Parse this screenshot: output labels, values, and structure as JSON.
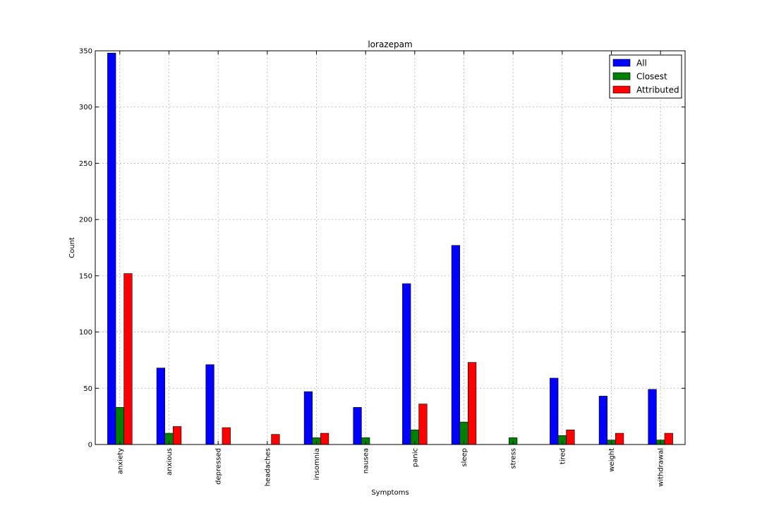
{
  "chart_data": {
    "type": "bar",
    "title": "lorazepam",
    "xlabel": "Symptoms",
    "ylabel": "Count",
    "ylim": [
      0,
      350
    ],
    "yticks": [
      0,
      50,
      100,
      150,
      200,
      250,
      300,
      350
    ],
    "grid": true,
    "legend_position": "top-right",
    "categories": [
      "anxiety",
      "anxious",
      "depressed",
      "headaches",
      "insomnia",
      "nausea",
      "panic",
      "sleep",
      "stress",
      "tired",
      "weight",
      "withdrawal"
    ],
    "series": [
      {
        "name": "All",
        "color": "#0000ff",
        "values": [
          348,
          68,
          71,
          0,
          47,
          33,
          143,
          177,
          0,
          59,
          43,
          49
        ]
      },
      {
        "name": "Closest",
        "color": "#008000",
        "values": [
          33,
          10,
          0,
          0,
          6,
          6,
          13,
          20,
          6,
          8,
          4,
          4
        ]
      },
      {
        "name": "Attributed",
        "color": "#ff0000",
        "values": [
          152,
          16,
          15,
          9,
          10,
          0,
          36,
          73,
          0,
          13,
          10,
          10
        ]
      }
    ]
  }
}
